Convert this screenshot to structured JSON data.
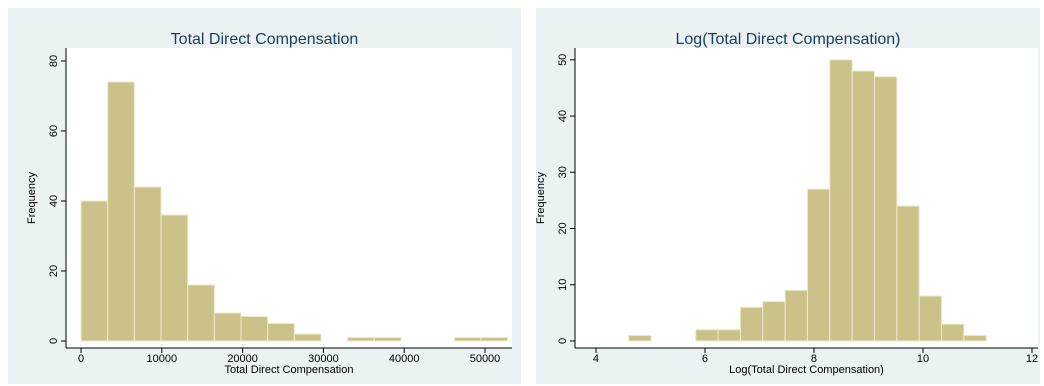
{
  "chart_data": [
    {
      "type": "histogram",
      "title": "Total Direct Compensation",
      "x_label": "Total Direct Compensation",
      "y_label": "Frequency",
      "bins": [
        0,
        3300,
        6600,
        9900,
        13200,
        16500,
        19800,
        23100,
        26400,
        29700,
        33000,
        36300,
        39600,
        42900,
        46200,
        49500,
        52800
      ],
      "values": [
        40,
        74,
        44,
        36,
        16,
        8,
        7,
        5,
        2,
        0,
        1,
        1,
        0,
        0,
        1,
        1
      ],
      "color": "#cbc28a",
      "xlim": [
        -1860,
        53340
      ],
      "ylim": [
        -2,
        83.7
      ],
      "xticks": [
        0,
        10000,
        20000,
        30000,
        40000,
        50000
      ],
      "yticks": [
        0,
        20,
        40,
        60,
        80
      ]
    },
    {
      "type": "histogram",
      "title": "Log(Total Direct Compensation)",
      "x_label": "Log(Total Direct Compensation)",
      "y_label": "Frequency",
      "bins": [
        4.6,
        5.01,
        5.42,
        5.83,
        6.24,
        6.65,
        7.06,
        7.47,
        7.88,
        8.29,
        8.7,
        9.11,
        9.52,
        9.93,
        10.34,
        10.75,
        11.16
      ],
      "values": [
        1,
        0,
        0,
        2,
        2,
        6,
        7,
        9,
        27,
        50,
        48,
        47,
        24,
        8,
        3,
        1
      ],
      "color": "#cbc28a",
      "xlim": [
        3.615,
        12.11
      ],
      "ylim": [
        -1.25,
        52.1
      ],
      "xticks": [
        4,
        6,
        8,
        10,
        12
      ],
      "yticks": [
        0,
        10,
        20,
        30,
        40,
        50
      ]
    }
  ]
}
